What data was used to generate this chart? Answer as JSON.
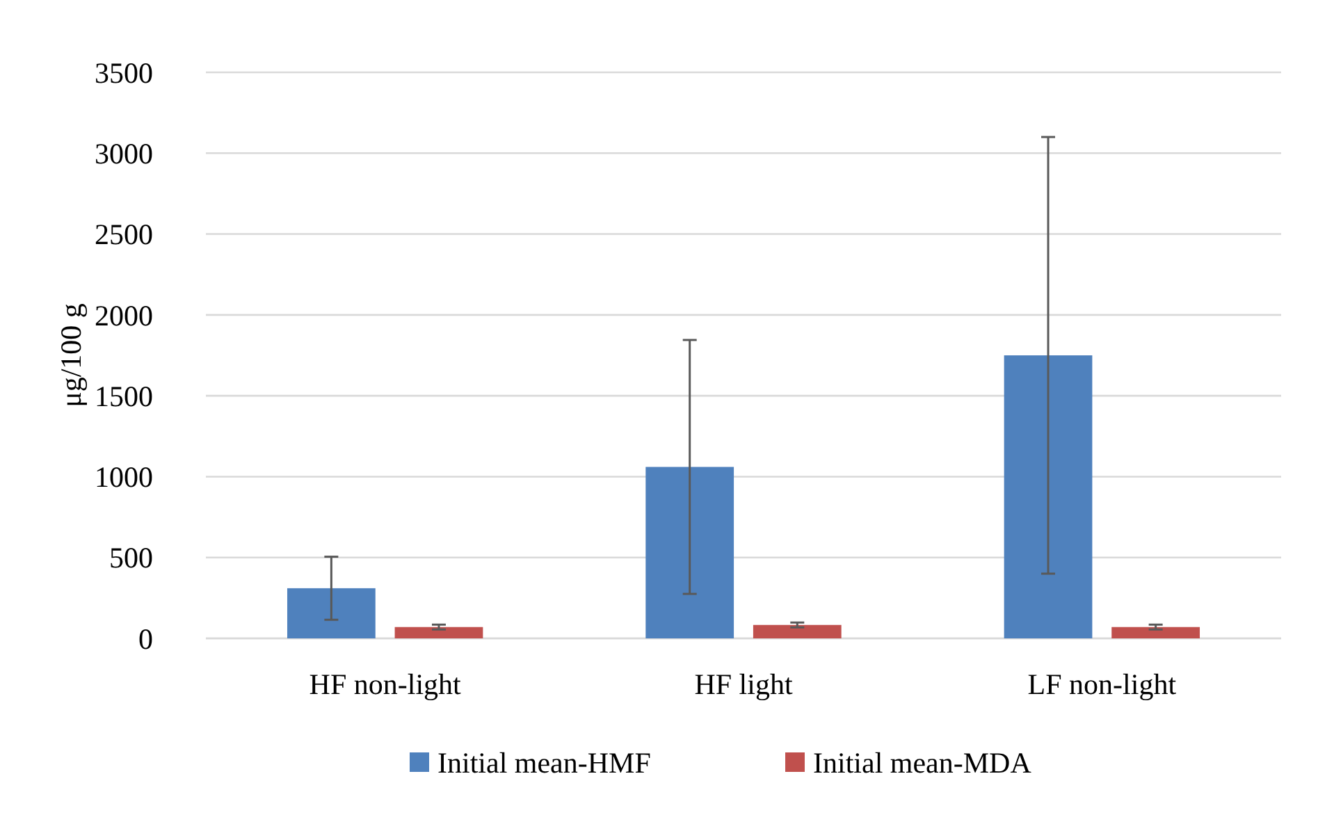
{
  "chart_data": {
    "type": "bar",
    "ylabel": "μg/100 g",
    "categories": [
      "HF non-light",
      "HF light",
      "LF non-light"
    ],
    "series": [
      {
        "name": "Initial mean-HMF",
        "color": "#4f81bd",
        "values": [
          310,
          1060,
          1750
        ],
        "errors": [
          195,
          785,
          1350
        ]
      },
      {
        "name": "Initial mean-MDA",
        "color": "#c0504d",
        "values": [
          70,
          83,
          70
        ],
        "errors": [
          15,
          15,
          15
        ]
      }
    ],
    "ylim": [
      0,
      3500
    ],
    "yticks": [
      0,
      500,
      1000,
      1500,
      2000,
      2500,
      3000,
      3500
    ],
    "grid": "y",
    "legend": "bottom"
  }
}
